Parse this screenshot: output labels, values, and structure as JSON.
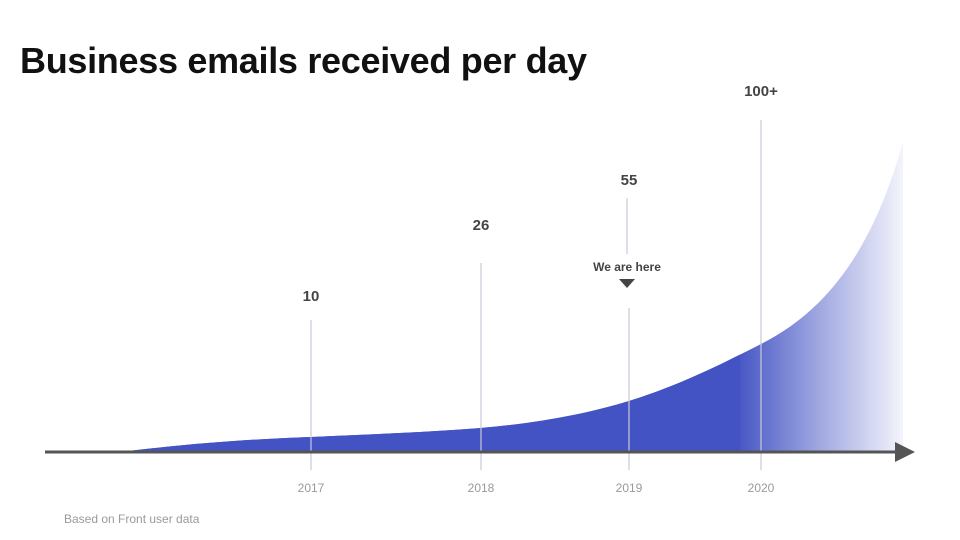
{
  "title": "Business emails received per day",
  "footnote": "Based on Front user data",
  "colors": {
    "area": "#4353c4",
    "axis": "#555555",
    "guide": "#c8c8d8",
    "value_text": "#444444",
    "year_text": "#9a9a9a"
  },
  "chart_data": {
    "type": "area",
    "title": "Business emails received per day",
    "xlabel": "",
    "ylabel": "",
    "x_ticks": [
      "2017",
      "2018",
      "2019",
      "2020"
    ],
    "points": [
      {
        "year": "2017",
        "value": 10,
        "label": "10"
      },
      {
        "year": "2018",
        "value": 26,
        "label": "26"
      },
      {
        "year": "2019",
        "value": 55,
        "label": "55"
      },
      {
        "year": "2020",
        "value": 100,
        "label": "100+"
      }
    ],
    "annotation": {
      "year": "2019",
      "text": "We are here"
    },
    "grid": false,
    "legend": "none"
  }
}
